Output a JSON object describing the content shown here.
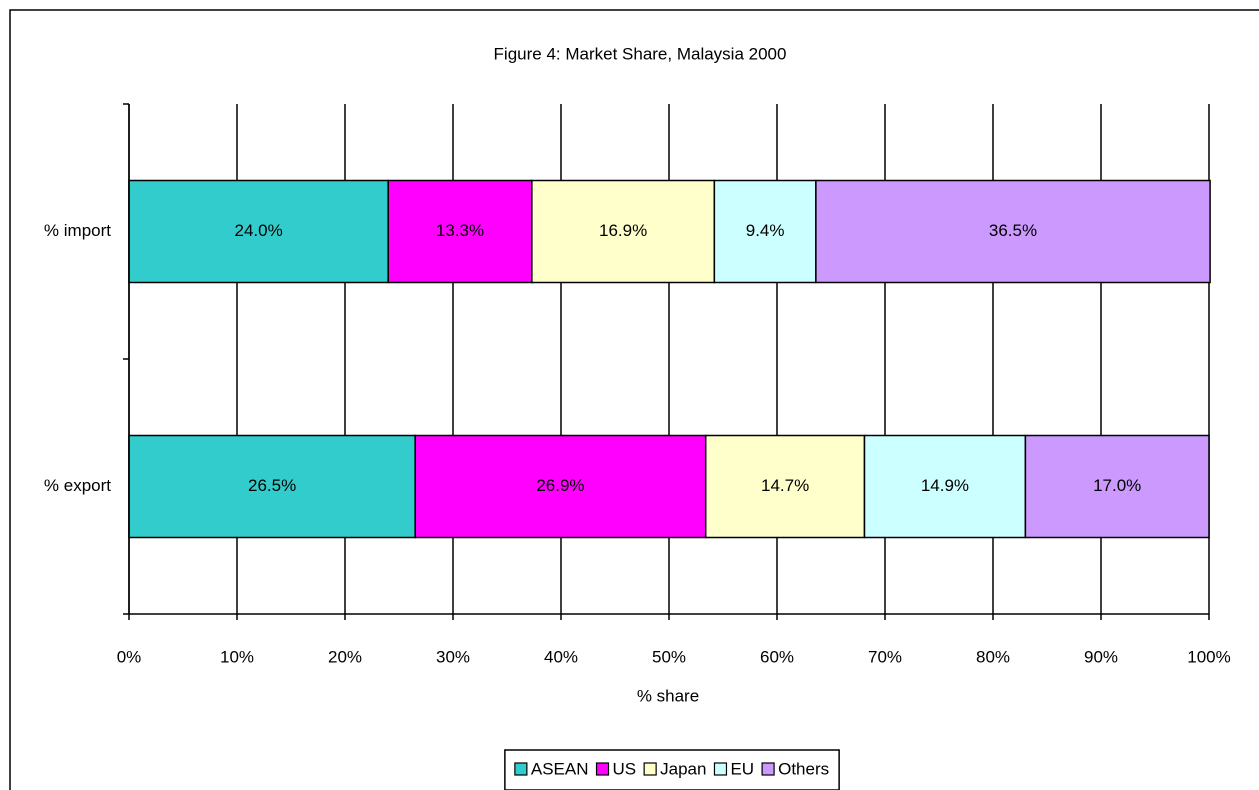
{
  "chart_data": {
    "type": "stacked-bar-horizontal",
    "title": "Figure 4: Market Share,  Malaysia 2000",
    "x_label": "% share",
    "categories": [
      "% import",
      "% export"
    ],
    "series": [
      {
        "name": "ASEAN",
        "color": "#33cccc",
        "values": [
          24.0,
          26.5
        ],
        "value_labels": [
          "24.0%",
          "26.5%"
        ]
      },
      {
        "name": "US",
        "color": "#ff00ff",
        "values": [
          13.3,
          26.9
        ],
        "value_labels": [
          "13.3%",
          "26.9%"
        ]
      },
      {
        "name": "Japan",
        "color": "#ffffcc",
        "values": [
          16.9,
          14.7
        ],
        "value_labels": [
          "16.9%",
          "14.7%"
        ]
      },
      {
        "name": "EU",
        "color": "#ccffff",
        "values": [
          9.4,
          14.9
        ],
        "value_labels": [
          "9.4%",
          "14.9%"
        ]
      },
      {
        "name": "Others",
        "color": "#cc99ff",
        "values": [
          36.5,
          17.0
        ],
        "value_labels": [
          "36.5%",
          "17.0%"
        ]
      }
    ],
    "xlim": [
      0,
      100
    ],
    "xticks": [
      {
        "value": 0,
        "label": "0%"
      },
      {
        "value": 10,
        "label": "10%"
      },
      {
        "value": 20,
        "label": "20%"
      },
      {
        "value": 30,
        "label": "30%"
      },
      {
        "value": 40,
        "label": "40%"
      },
      {
        "value": 50,
        "label": "50%"
      },
      {
        "value": 60,
        "label": "60%"
      },
      {
        "value": 70,
        "label": "70%"
      },
      {
        "value": 80,
        "label": "80%"
      },
      {
        "value": 90,
        "label": "90%"
      },
      {
        "value": 100,
        "label": "100%"
      }
    ],
    "grid": true,
    "legend": "bottom"
  }
}
